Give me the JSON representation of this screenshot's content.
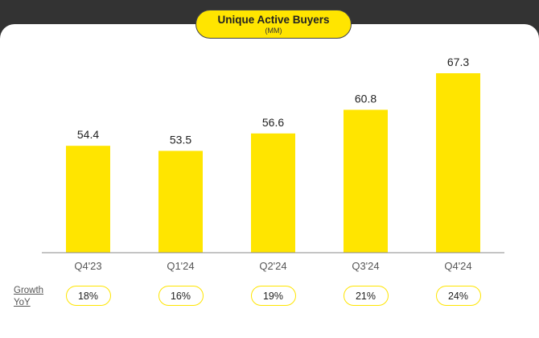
{
  "chart_data": {
    "type": "bar",
    "title": "Unique Active Buyers",
    "subtitle": "(MM)",
    "categories": [
      "Q4'23",
      "Q1'24",
      "Q2'24",
      "Q3'24",
      "Q4'24"
    ],
    "values": [
      54.4,
      53.5,
      56.6,
      60.8,
      67.3
    ],
    "value_labels": [
      "54.4",
      "53.5",
      "56.6",
      "60.8",
      "67.3"
    ],
    "ylim": [
      35.4,
      67.3
    ],
    "grid": false,
    "bar_color": "#FFE500",
    "growth": {
      "label_line1": "Growth",
      "label_line2": "YoY",
      "values": [
        "18%",
        "16%",
        "19%",
        "21%",
        "24%"
      ]
    }
  }
}
